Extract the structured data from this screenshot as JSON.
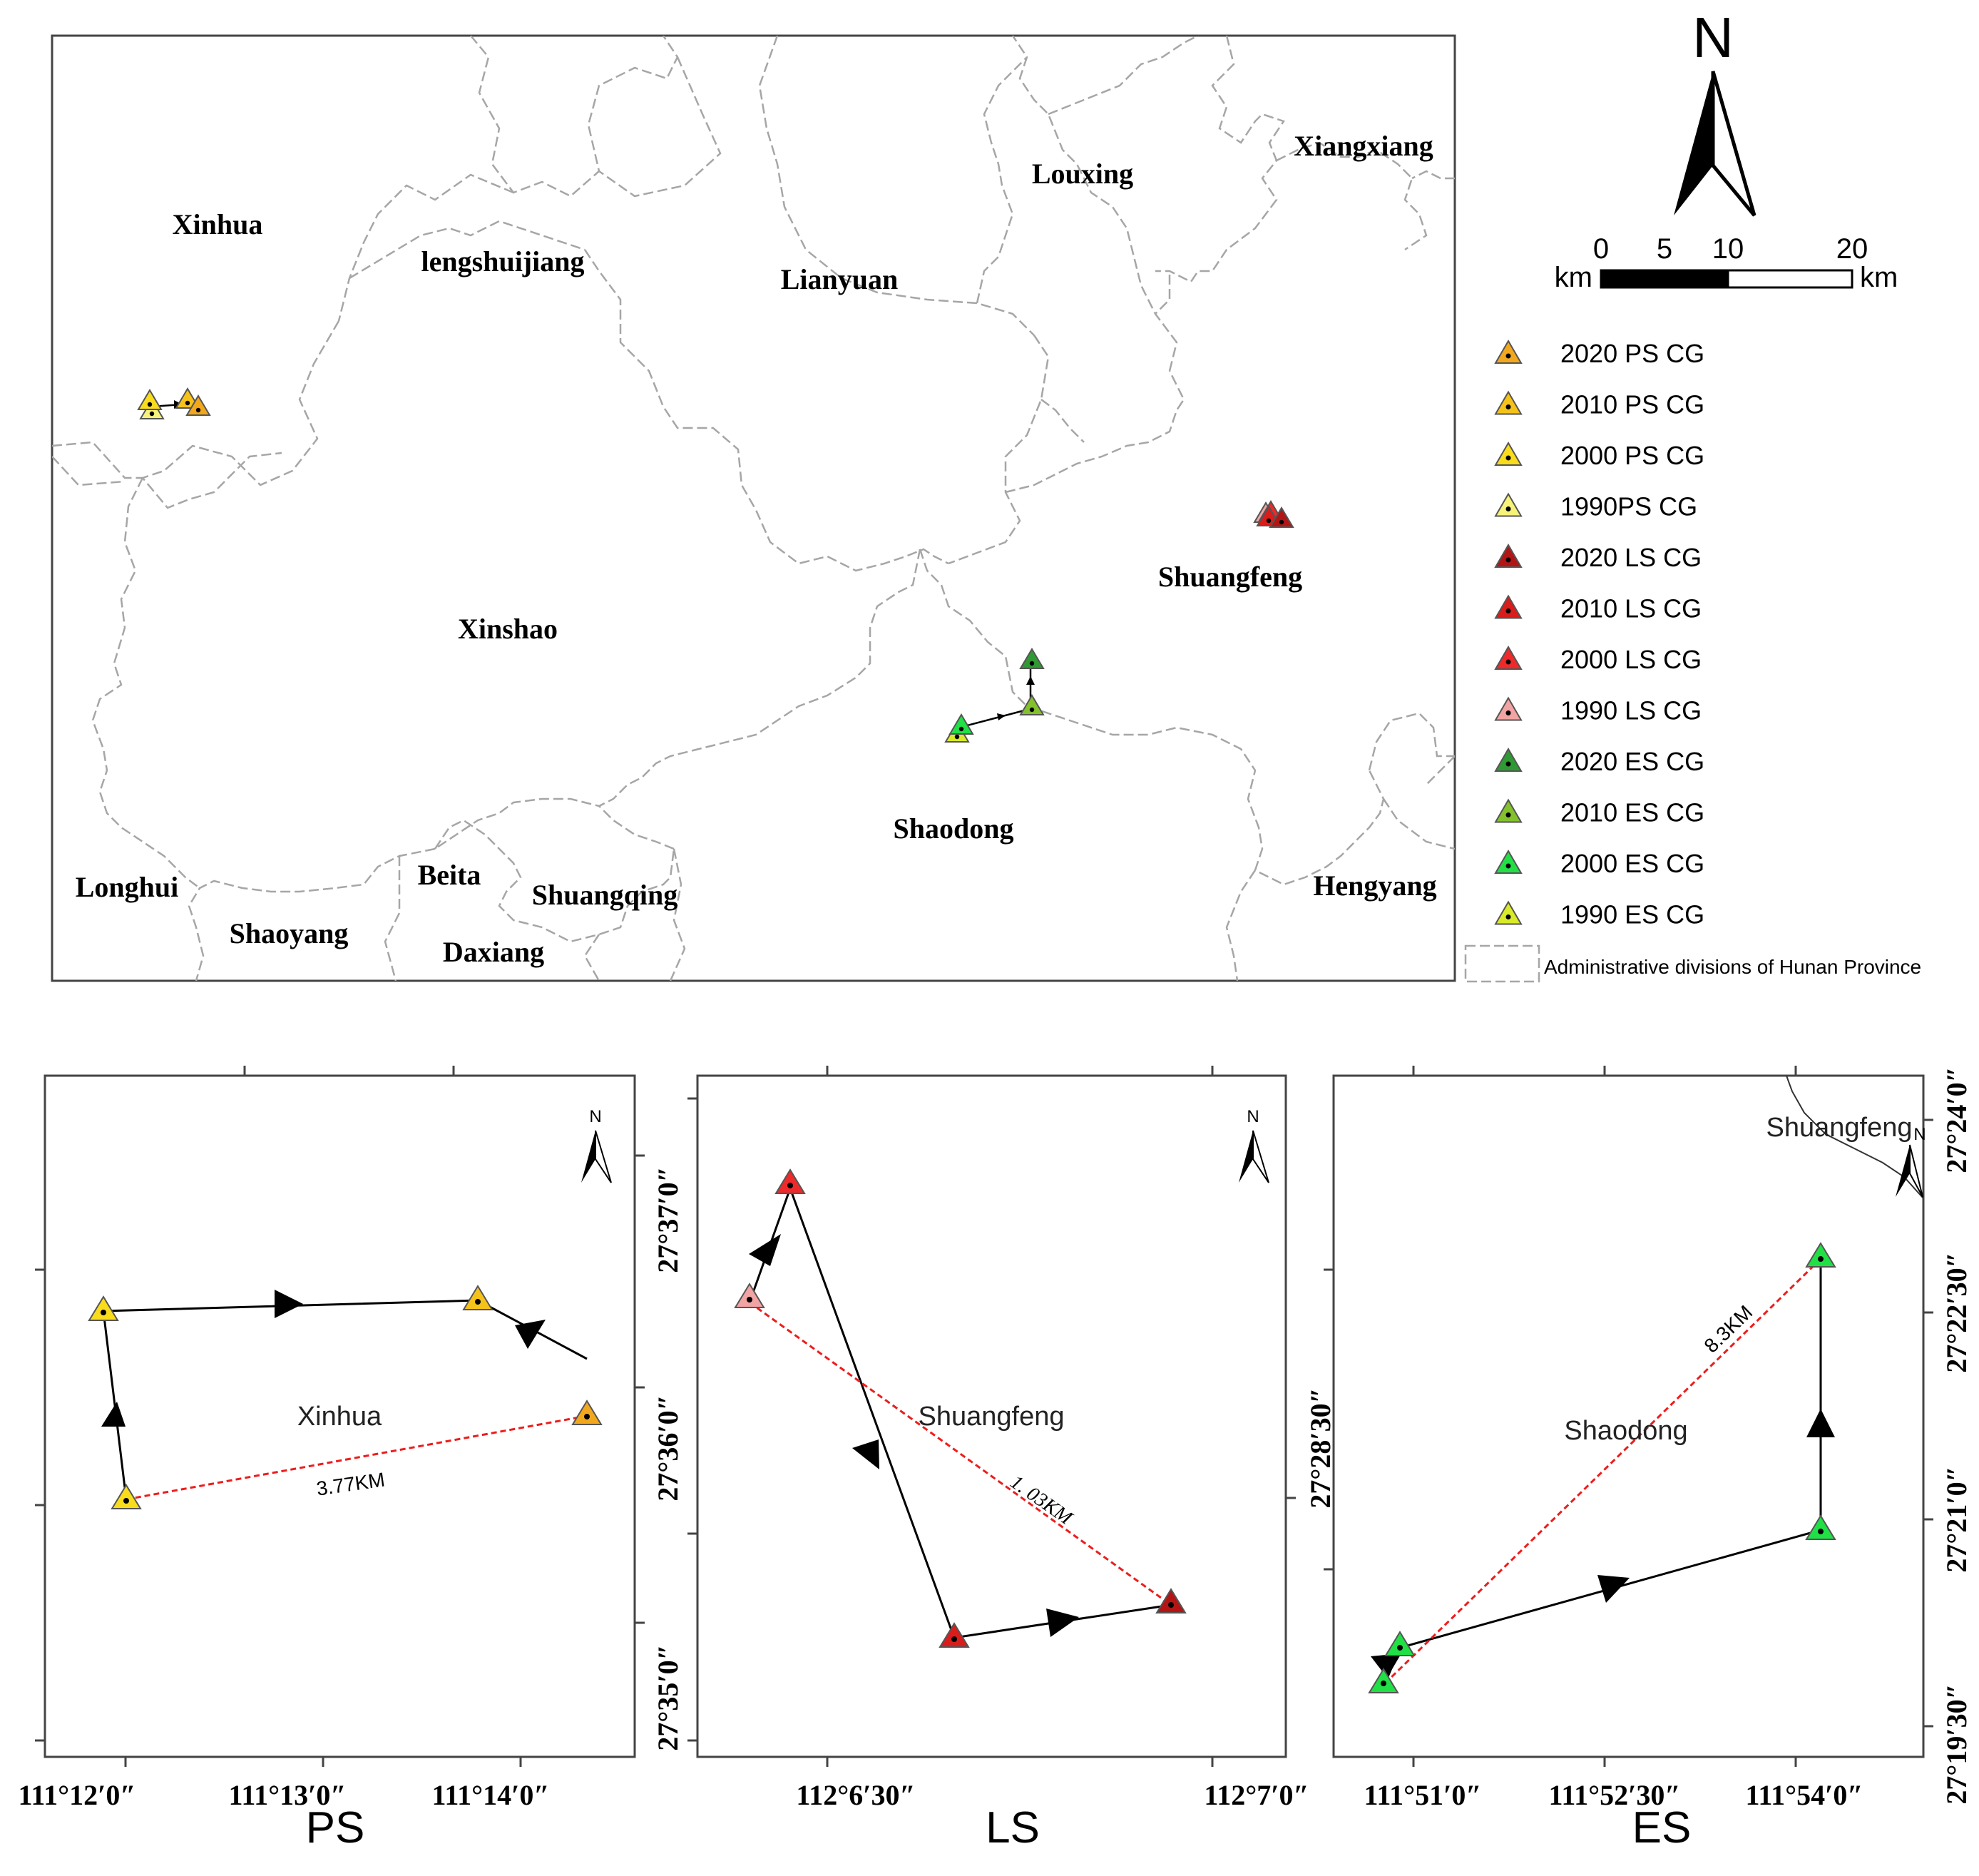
{
  "main_map": {
    "regions": [
      "Xinhua",
      "lengshuijiang",
      "Lianyuan",
      "Louxing",
      "Xiangxiang",
      "Xinshao",
      "Shuangfeng",
      "Shaodong",
      "Longhui",
      "Shaoyang",
      "Beita",
      "Daxiang",
      "Shuangqing",
      "Hengyang"
    ]
  },
  "north_label": "N",
  "scale_bar": {
    "unit": "km",
    "ticks": [
      "0",
      "5",
      "10",
      "20"
    ]
  },
  "legend": {
    "items": [
      {
        "label": "2020 PS CG",
        "color": "#f2a81d"
      },
      {
        "label": "2010 PS CG",
        "color": "#f5c21b"
      },
      {
        "label": "2000 PS CG",
        "color": "#f9dc1c"
      },
      {
        "label": "1990PS CG",
        "color": "#f7f27a"
      },
      {
        "label": "2020 LS CG",
        "color": "#b31515"
      },
      {
        "label": "2010 LS CG",
        "color": "#d91c1c"
      },
      {
        "label": "2000 LS CG",
        "color": "#ee2a2a"
      },
      {
        "label": "1990 LS CG",
        "color": "#f2a3a3"
      },
      {
        "label": "2020 ES CG",
        "color": "#2f9a33"
      },
      {
        "label": "2010 ES CG",
        "color": "#83c22d"
      },
      {
        "label": "2000 ES CG",
        "color": "#20e046"
      },
      {
        "label": "1990 ES CG",
        "color": "#d9ea2a"
      }
    ],
    "boundary_label": "Administrative divisions of Hunan Province"
  },
  "insets": [
    {
      "panel": "PS",
      "area": "Xinhua",
      "distance": "3.77KM",
      "x_ticks": [
        "111°12′0″",
        "111°13′0″",
        "111°14′0″"
      ],
      "y_ticks": [
        "27°35′0″",
        "27°36′0″",
        "27°37′0″"
      ]
    },
    {
      "panel": "LS",
      "area": "Shuangfeng",
      "distance": "1. 03KM",
      "x_ticks": [
        "112°6′30″",
        "112°7′0″"
      ],
      "y_ticks": [
        "27°28′30″"
      ]
    },
    {
      "panel": "ES",
      "area": "Shaodong",
      "neighbor": "Shuangfeng",
      "distance": "8.3KM",
      "x_ticks": [
        "111°51′0″",
        "111°52′30″",
        "111°54′0″"
      ],
      "y_ticks": [
        "27°19′30″",
        "27°21′0″",
        "27°22′30″",
        "27°24′0″"
      ]
    }
  ]
}
